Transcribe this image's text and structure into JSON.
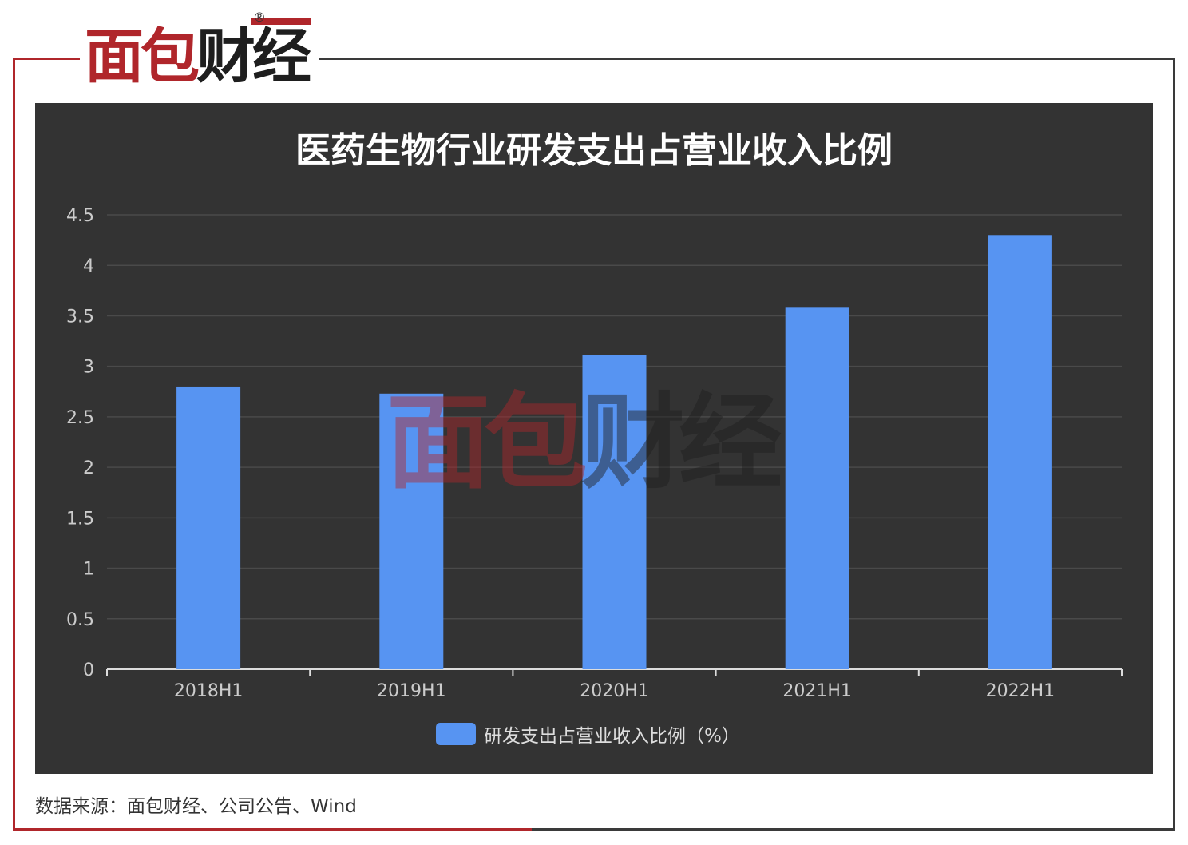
{
  "logo": {
    "part1": "面包",
    "part2": "财经",
    "registered": "®"
  },
  "watermark": {
    "part1": "面包",
    "part2": "财经",
    "registered": "®"
  },
  "source": "数据来源：面包财经、公司公告、Wind",
  "colors": {
    "bar": "#5794f2",
    "panel": "#333333",
    "brand_red": "#b0262b"
  },
  "chart_data": {
    "type": "bar",
    "title": "医药生物行业研发支出占营业收入比例",
    "categories": [
      "2018H1",
      "2019H1",
      "2020H1",
      "2021H1",
      "2022H1"
    ],
    "series": [
      {
        "name": "研发支出占营业收入比例（%）",
        "values": [
          2.8,
          2.73,
          3.11,
          3.58,
          4.3
        ]
      }
    ],
    "ylim": [
      0,
      4.5
    ],
    "yticks": [
      "0",
      "0.5",
      "1",
      "1.5",
      "2",
      "2.5",
      "3",
      "3.5",
      "4",
      "4.5"
    ],
    "grid": true,
    "legend_position": "bottom"
  }
}
